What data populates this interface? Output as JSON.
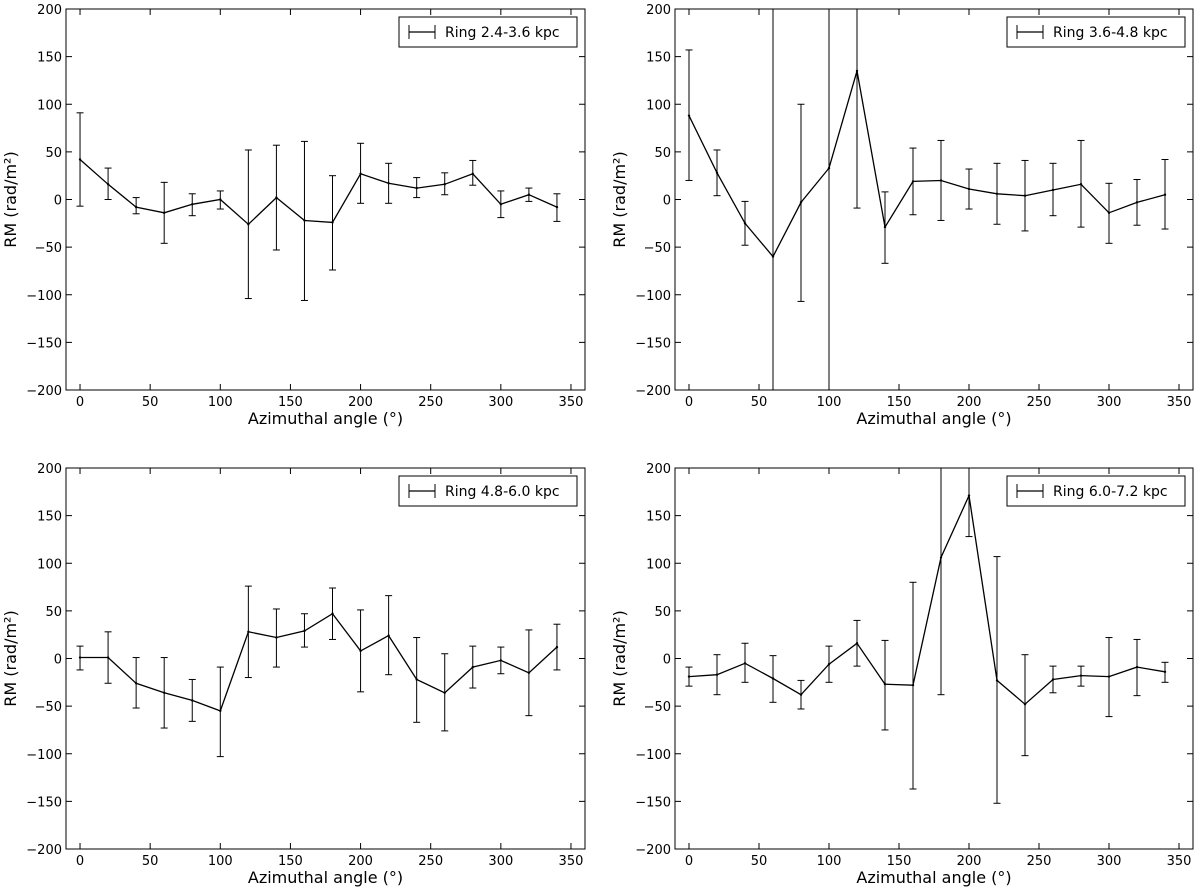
{
  "chart_data": [
    {
      "type": "line",
      "title": "",
      "xlabel": "Azimuthal angle (°)",
      "ylabel": "RM (rad/m²)",
      "xlim": [
        -10,
        360
      ],
      "ylim": [
        -200,
        200
      ],
      "xticks": [
        "0",
        "50",
        "100",
        "150",
        "200",
        "250",
        "300",
        "350"
      ],
      "yticks": [
        "200",
        "150",
        "100",
        "50",
        "0",
        "−50",
        "−100",
        "−150",
        "−200"
      ],
      "series": [
        {
          "name": "Ring 2.4-3.6 kpc",
          "x": [
            0,
            20,
            40,
            60,
            80,
            100,
            120,
            140,
            160,
            180,
            200,
            220,
            240,
            260,
            280,
            300,
            320,
            340
          ],
          "y": [
            42,
            16,
            -8,
            -14,
            -5,
            0,
            -26,
            2,
            -22,
            -24,
            27,
            17,
            12,
            16,
            27,
            -5,
            5,
            -8
          ],
          "err_lo": [
            -7,
            0,
            -15,
            -46,
            -17,
            -10,
            -104,
            -53,
            -106,
            -74,
            -4,
            -4,
            2,
            5,
            15,
            -19,
            -2,
            -23
          ],
          "err_hi": [
            91,
            33,
            2,
            18,
            6,
            9,
            52,
            57,
            61,
            25,
            59,
            38,
            23,
            28,
            41,
            9,
            12,
            6
          ]
        }
      ]
    },
    {
      "type": "line",
      "title": "",
      "xlabel": "Azimuthal angle (°)",
      "ylabel": "RM (rad/m²)",
      "xlim": [
        -10,
        360
      ],
      "ylim": [
        -200,
        200
      ],
      "xticks": [
        "0",
        "50",
        "100",
        "150",
        "200",
        "250",
        "300",
        "350"
      ],
      "yticks": [
        "200",
        "150",
        "100",
        "50",
        "0",
        "−50",
        "−100",
        "−150",
        "−200"
      ],
      "series": [
        {
          "name": "Ring 3.6-4.8 kpc",
          "x": [
            0,
            20,
            40,
            60,
            80,
            100,
            120,
            140,
            160,
            180,
            200,
            220,
            240,
            260,
            280,
            300,
            320,
            340
          ],
          "y": [
            88,
            28,
            -25,
            -60,
            -3,
            33,
            135,
            -29,
            19,
            20,
            11,
            6,
            4,
            10,
            16,
            -14,
            -3,
            5
          ],
          "err_lo": [
            20,
            4,
            -48,
            -200,
            -107,
            -200,
            -9,
            -67,
            -16,
            -22,
            -10,
            -26,
            -33,
            -17,
            -29,
            -46,
            -27,
            -31
          ],
          "err_hi": [
            157,
            52,
            -2,
            200,
            100,
            200,
            200,
            8,
            54,
            62,
            32,
            38,
            41,
            38,
            62,
            17,
            21,
            42
          ]
        }
      ]
    },
    {
      "type": "line",
      "title": "",
      "xlabel": "Azimuthal angle (°)",
      "ylabel": "RM (rad/m²)",
      "xlim": [
        -10,
        360
      ],
      "ylim": [
        -200,
        200
      ],
      "xticks": [
        "0",
        "50",
        "100",
        "150",
        "200",
        "250",
        "300",
        "350"
      ],
      "yticks": [
        "200",
        "150",
        "100",
        "50",
        "0",
        "−50",
        "−100",
        "−150",
        "−200"
      ],
      "series": [
        {
          "name": "Ring 4.8-6.0 kpc",
          "x": [
            0,
            20,
            40,
            60,
            80,
            100,
            120,
            140,
            160,
            180,
            200,
            220,
            240,
            260,
            280,
            300,
            320,
            340
          ],
          "y": [
            1,
            1,
            -26,
            -36,
            -44,
            -55,
            28,
            22,
            29,
            47,
            8,
            24,
            -22,
            -36,
            -9,
            -2,
            -15,
            12
          ],
          "err_lo": [
            -12,
            -26,
            -52,
            -73,
            -66,
            -103,
            -20,
            -9,
            12,
            20,
            -35,
            -17,
            -67,
            -76,
            -31,
            -16,
            -60,
            -12
          ],
          "err_hi": [
            13,
            28,
            1,
            1,
            -22,
            -9,
            76,
            52,
            47,
            74,
            51,
            66,
            22,
            5,
            13,
            12,
            30,
            36
          ]
        }
      ]
    },
    {
      "type": "line",
      "title": "",
      "xlabel": "Azimuthal angle (°)",
      "ylabel": "RM (rad/m²)",
      "xlim": [
        -10,
        360
      ],
      "ylim": [
        -200,
        200
      ],
      "xticks": [
        "0",
        "50",
        "100",
        "150",
        "200",
        "250",
        "300",
        "350"
      ],
      "yticks": [
        "200",
        "150",
        "100",
        "50",
        "0",
        "−50",
        "−100",
        "−150",
        "−200"
      ],
      "series": [
        {
          "name": "Ring 6.0-7.2 kpc",
          "x": [
            0,
            20,
            40,
            60,
            80,
            100,
            120,
            140,
            160,
            180,
            200,
            220,
            240,
            260,
            280,
            300,
            320,
            340
          ],
          "y": [
            -19,
            -17,
            -5,
            -21,
            -38,
            -6,
            16,
            -27,
            -28,
            106,
            171,
            -23,
            -48,
            -22,
            -18,
            -19,
            -9,
            -14
          ],
          "err_lo": [
            -29,
            -38,
            -25,
            -46,
            -53,
            -25,
            -8,
            -75,
            -137,
            -38,
            128,
            -152,
            -102,
            -36,
            -29,
            -61,
            -39,
            -25
          ],
          "err_hi": [
            -9,
            4,
            16,
            3,
            -23,
            13,
            40,
            19,
            80,
            200,
            200,
            107,
            4,
            -8,
            -8,
            22,
            20,
            -4
          ]
        }
      ]
    }
  ]
}
